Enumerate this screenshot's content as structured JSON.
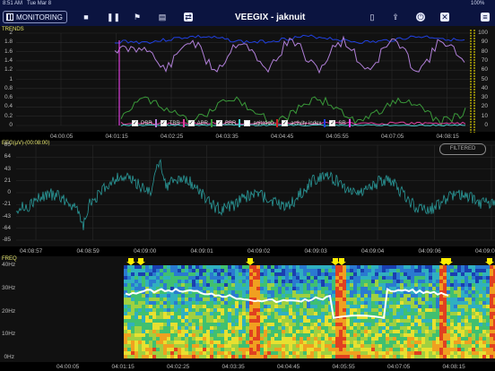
{
  "status_bar": {
    "time": "8:51 AM",
    "date": "Tue Mar 8",
    "battery": "100%"
  },
  "toolbar": {
    "monitoring_label": "MONITORING",
    "title": "VEEGIX - jaknuit",
    "icons": [
      "stop-icon",
      "pause-icon",
      "flag-icon",
      "comment-icon",
      "swap-icon",
      "document-icon",
      "share-icon",
      "power-icon",
      "close-icon",
      "settings-icon"
    ]
  },
  "trends": {
    "label": "TRENDS",
    "left_axis_label": "agitation",
    "right_axis_label": "ratio (%)",
    "y_ticks": [
      "2",
      "1.8",
      "1.6",
      "1.4",
      "1.2",
      "1",
      "0.8",
      "0.6",
      "0.4",
      "0.2",
      "0"
    ],
    "right_ticks": [
      "100",
      "90",
      "80",
      "70",
      "60",
      "50",
      "40",
      "30",
      "20",
      "10",
      "0"
    ],
    "x_ticks": [
      "04:00:05",
      "04:01:15",
      "04:02:25",
      "04:03:35",
      "04:04:45",
      "04:05:55",
      "04:07:05",
      "04:08:15"
    ],
    "legend": [
      {
        "label": "DBR",
        "checked": true,
        "color": "#b07fd8"
      },
      {
        "label": "TBR",
        "checked": true,
        "color": "#e040a0"
      },
      {
        "label": "ABR",
        "checked": true,
        "color": "#3a9a3a"
      },
      {
        "label": "BBR",
        "checked": true,
        "color": "#4ad0d0"
      },
      {
        "label": "agitation",
        "checked": false,
        "color": "#cc2222"
      },
      {
        "label": "activity index",
        "checked": true,
        "color": "#2040e0"
      },
      {
        "label": "SR",
        "checked": true,
        "color": "#ff44ff"
      }
    ]
  },
  "eeg": {
    "label": "EEG(μV)-(00:08:00)",
    "filtered_label": "FILTERED",
    "y_ticks": [
      "85",
      "64",
      "43",
      "21",
      "0",
      "-21",
      "-43",
      "-64",
      "-85"
    ],
    "x_ticks": [
      "04:08:57",
      "04:08:59",
      "04:09:00",
      "04:09:01",
      "04:09:02",
      "04:09:03",
      "04:09:04",
      "04:09:06",
      "04:09:07"
    ]
  },
  "freq": {
    "label": "FREQ",
    "y_ticks": [
      "40Hz",
      "30Hz",
      "20Hz",
      "10Hz",
      "0Hz"
    ],
    "x_ticks": [
      "04:00:05",
      "04:01:15",
      "04:02:25",
      "04:03:35",
      "04:04:45",
      "04:05:55",
      "04:07:05",
      "04:08:15"
    ]
  },
  "colors": {
    "toolbar_bg": "#0b1440",
    "eeg_trace": "#2a9a9a",
    "label_yellow": "#e6e66e",
    "marker_yellow": "#ffee00"
  }
}
